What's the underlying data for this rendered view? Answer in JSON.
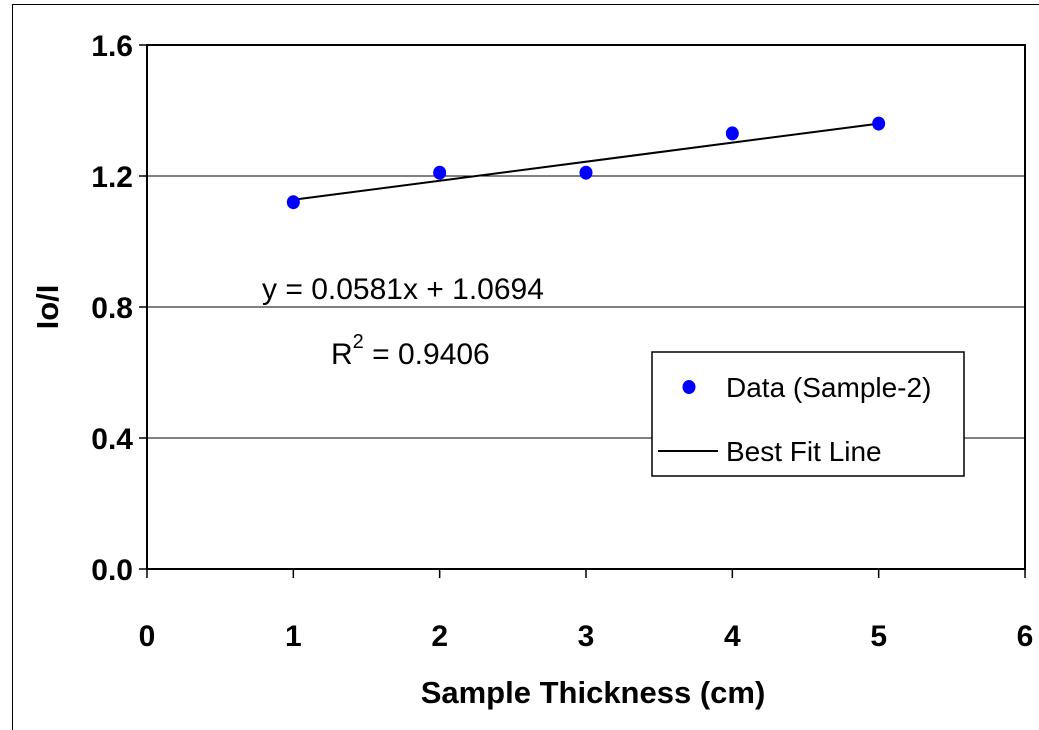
{
  "chart_data": {
    "type": "scatter",
    "title": "",
    "xlabel": "Sample Thickness (cm)",
    "ylabel": "Io/I",
    "xlim": [
      0,
      6
    ],
    "ylim": [
      0.0,
      1.6
    ],
    "xticks": [
      "0",
      "1",
      "2",
      "3",
      "4",
      "5",
      "6"
    ],
    "yticks": [
      "0.0",
      "0.4",
      "0.8",
      "1.2",
      "1.6"
    ],
    "grid": "horizontal",
    "series": [
      {
        "name": "Data (Sample-2)",
        "kind": "scatter",
        "color": "#0000ff",
        "x": [
          1,
          2,
          3,
          4,
          5
        ],
        "y": [
          1.12,
          1.21,
          1.21,
          1.33,
          1.36
        ]
      },
      {
        "name": "Best Fit Line",
        "kind": "line",
        "color": "#000000",
        "slope": 0.0581,
        "intercept": 1.0694,
        "x_range": [
          1,
          5
        ]
      }
    ],
    "annotations": {
      "equation": "y = 0.0581x + 1.0694",
      "r2_base": "R",
      "r2_sup": "2",
      "r2_value": " = 0.9406"
    },
    "legend": {
      "position": "lower-right",
      "items": [
        "Data (Sample-2)",
        "Best Fit Line"
      ]
    }
  }
}
